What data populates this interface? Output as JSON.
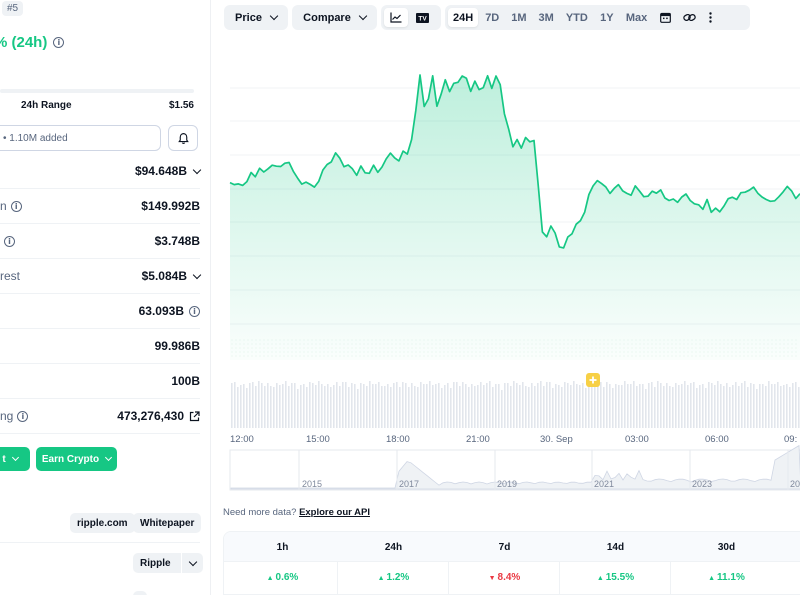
{
  "header": {
    "rank": "#5",
    "change_24h": "% (24h)",
    "range_label": "24h Range",
    "range_high": "$1.56",
    "watchlist_text": "• 1.10M added"
  },
  "stats": [
    {
      "name": "",
      "value": "$94.648B",
      "has_chevron": true,
      "has_info": false
    },
    {
      "name": "n",
      "value": "$149.992B",
      "has_chevron": false,
      "has_info": true
    },
    {
      "name": "",
      "value": "$3.748B",
      "has_chevron": false,
      "has_info": true
    },
    {
      "name": "rest",
      "value": "$5.084B",
      "has_chevron": true,
      "has_info": false
    },
    {
      "name": "",
      "value": "63.093B",
      "has_chevron": false,
      "has_info": true
    },
    {
      "name": "",
      "value": "99.986B",
      "has_chevron": false,
      "has_info": false
    },
    {
      "name": "",
      "value": "100B",
      "has_chevron": false,
      "has_info": false
    },
    {
      "name": "ng",
      "value": "473,276,430",
      "has_chevron": false,
      "has_info": true
    }
  ],
  "buttons": {
    "left_green": "t",
    "earn_crypto": "Earn Crypto",
    "website": "ripple.com",
    "whitepaper": "Whitepaper",
    "explorer": "Ripple"
  },
  "toolbar": {
    "price": "Price",
    "compare": "Compare",
    "tv_label": "TV",
    "ranges": [
      "24H",
      "7D",
      "1M",
      "3M",
      "YTD",
      "1Y",
      "Max"
    ],
    "active_range": "24H"
  },
  "chart_data": {
    "type": "area",
    "title": "",
    "time_labels": [
      "12:00",
      "15:00",
      "18:00",
      "21:00",
      "30. Sep",
      "03:00",
      "06:00",
      "09:"
    ],
    "year_labels": [
      "2015",
      "2017",
      "2019",
      "2021",
      "2023",
      "20"
    ],
    "series": [
      {
        "values": [
          56.9,
          56.1,
          56.4,
          55.8,
          57.3,
          60.9,
          59.2,
          62.6,
          61.1,
          62.4,
          63.8,
          63.4,
          63.3,
          64.6,
          64.9,
          61.4,
          58.7,
          56.3,
          57.1,
          56.2,
          55.1,
          57.4,
          61.9,
          64.1,
          65.1,
          68.7,
          66.6,
          63.2,
          63.9,
          62.4,
          59.8,
          63.5,
          60.8,
          60.6,
          63.8,
          61.0,
          63.1,
          66.3,
          68.6,
          66.7,
          65.5,
          69.4,
          68.2,
          74.0,
          85.5,
          99.6,
          87.1,
          90.1,
          99.3,
          87.2,
          92.0,
          97.7,
          93.0,
          96.3,
          96.7,
          99.2,
          98.3,
          93.1,
          97.2,
          93.8,
          94.6,
          99.3,
          94.3,
          99.2,
          95.8,
          84.2,
          78.1,
          71.1,
          74.0,
          70.6,
          74.8,
          73.1,
          73.6,
          55.9,
          37.3,
          35.4,
          39.7,
          36.9,
          31.4,
          31.0,
          35.3,
          36.6,
          40.4,
          41.8,
          45.2,
          52.2,
          55.6,
          57.7,
          56.5,
          55.2,
          52.6,
          54.6,
          56.1,
          53.6,
          52.6,
          51.9,
          55.6,
          53.5,
          51.3,
          51.5,
          53.5,
          52.7,
          54.0,
          50.8,
          49.8,
          50.4,
          49.1,
          51.2,
          52.4,
          49.8,
          48.5,
          48.1,
          46.3,
          50.2,
          45.1,
          46.8,
          45.3,
          47.6,
          50.5,
          51.1,
          50.2,
          52.9,
          53.1,
          53.9,
          55.1,
          52.7,
          51.2,
          50.2,
          49.5,
          49.7,
          51.3,
          53.2,
          55.4,
          53.6,
          50.6,
          52.5
        ]
      }
    ],
    "ylim": [
      0,
      100
    ],
    "grid": true,
    "colors": {
      "line": "#16c784",
      "fill_top": "#16c784",
      "volume": "#e2e6ec"
    }
  },
  "api_note": {
    "text": "Need more data?",
    "link": "Explore our API"
  },
  "performance": {
    "headers": [
      "1h",
      "24h",
      "7d",
      "14d",
      "30d"
    ],
    "values": [
      "0.6%",
      "1.2%",
      "8.4%",
      "15.5%",
      "11.1%"
    ],
    "directions": [
      "up",
      "up",
      "down",
      "up",
      "up"
    ]
  },
  "colors": {
    "up": "#16c784",
    "down": "#ea3943",
    "muted": "#58667e"
  }
}
